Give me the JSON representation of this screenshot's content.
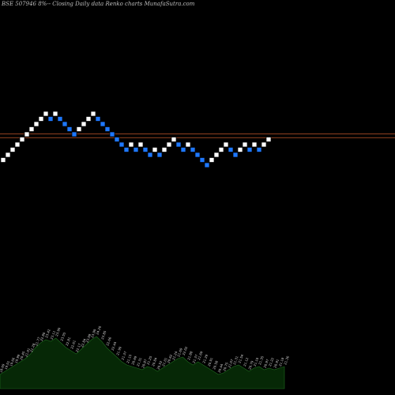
{
  "chart_data": {
    "type": "renko",
    "title": "BSE 507946 8%-- Closing Daily data Renko charts MunafaSutra.com",
    "colors": {
      "background": "#000000",
      "up_brick": "#ffffff",
      "up_brick_border": "#000000",
      "down_brick": "#1e78ff",
      "down_brick_border": "#000000",
      "reference_line": "#c0562a",
      "volume_area": "#062806",
      "volume_outline": "#1f6a1f"
    },
    "price_axis": {
      "min": 0,
      "max": 36
    },
    "reference_lines": [
      26.1,
      25.35
    ],
    "bricks": [
      {
        "dir": "up",
        "level": 21
      },
      {
        "dir": "up",
        "level": 22
      },
      {
        "dir": "up",
        "level": 23
      },
      {
        "dir": "up",
        "level": 24
      },
      {
        "dir": "up",
        "level": 25
      },
      {
        "dir": "up",
        "level": 26
      },
      {
        "dir": "up",
        "level": 27
      },
      {
        "dir": "up",
        "level": 28
      },
      {
        "dir": "up",
        "level": 29
      },
      {
        "dir": "up",
        "level": 30
      },
      {
        "dir": "down",
        "level": 29
      },
      {
        "dir": "up",
        "level": 30
      },
      {
        "dir": "down",
        "level": 29
      },
      {
        "dir": "down",
        "level": 28
      },
      {
        "dir": "down",
        "level": 27
      },
      {
        "dir": "down",
        "level": 26
      },
      {
        "dir": "up",
        "level": 27
      },
      {
        "dir": "up",
        "level": 28
      },
      {
        "dir": "up",
        "level": 29
      },
      {
        "dir": "up",
        "level": 30
      },
      {
        "dir": "down",
        "level": 29
      },
      {
        "dir": "down",
        "level": 28
      },
      {
        "dir": "down",
        "level": 27
      },
      {
        "dir": "down",
        "level": 26
      },
      {
        "dir": "down",
        "level": 25
      },
      {
        "dir": "down",
        "level": 24
      },
      {
        "dir": "down",
        "level": 23
      },
      {
        "dir": "up",
        "level": 24
      },
      {
        "dir": "down",
        "level": 23
      },
      {
        "dir": "up",
        "level": 24
      },
      {
        "dir": "down",
        "level": 23
      },
      {
        "dir": "down",
        "level": 22
      },
      {
        "dir": "up",
        "level": 23
      },
      {
        "dir": "down",
        "level": 22
      },
      {
        "dir": "up",
        "level": 23
      },
      {
        "dir": "up",
        "level": 24
      },
      {
        "dir": "up",
        "level": 25
      },
      {
        "dir": "down",
        "level": 24
      },
      {
        "dir": "down",
        "level": 23
      },
      {
        "dir": "up",
        "level": 24
      },
      {
        "dir": "down",
        "level": 23
      },
      {
        "dir": "down",
        "level": 22
      },
      {
        "dir": "down",
        "level": 21
      },
      {
        "dir": "down",
        "level": 20
      },
      {
        "dir": "up",
        "level": 21
      },
      {
        "dir": "up",
        "level": 22
      },
      {
        "dir": "up",
        "level": 23
      },
      {
        "dir": "up",
        "level": 24
      },
      {
        "dir": "down",
        "level": 23
      },
      {
        "dir": "down",
        "level": 22
      },
      {
        "dir": "up",
        "level": 23
      },
      {
        "dir": "up",
        "level": 24
      },
      {
        "dir": "down",
        "level": 23
      },
      {
        "dir": "up",
        "level": 24
      },
      {
        "dir": "down",
        "level": 23
      },
      {
        "dir": "up",
        "level": 24
      },
      {
        "dir": "up",
        "level": 25
      }
    ],
    "volume": [
      18,
      22,
      26,
      30,
      34,
      38,
      44,
      52,
      58,
      62,
      60,
      64,
      58,
      52,
      48,
      44,
      50,
      56,
      62,
      66,
      60,
      52,
      46,
      40,
      34,
      30,
      28,
      26,
      24,
      28,
      26,
      22,
      26,
      30,
      34,
      38,
      40,
      34,
      30,
      34,
      30,
      26,
      22,
      18,
      20,
      24,
      28,
      30,
      26,
      22,
      26,
      28,
      24,
      26,
      24,
      26,
      28
    ],
    "price_labels": [
      "18.69",
      "19.01",
      "19.66",
      "19.99",
      "20.45",
      "21.01",
      "21.28",
      "21.77",
      "22.80",
      "23.42",
      "23.11",
      "23.90",
      "23.55",
      "22.81",
      "22.61",
      "22.17",
      "22.84",
      "23.09",
      "23.99",
      "24.20",
      "23.85",
      "22.66",
      "22.44",
      "21.90",
      "21.37",
      "21.15",
      "20.69",
      "21.31",
      "20.87",
      "21.25",
      "20.84",
      "20.52",
      "21.01",
      "20.62",
      "21.24",
      "21.69",
      "22.02",
      "21.88",
      "21.37",
      "21.69",
      "21.29",
      "20.91",
      "20.58",
      "20.44",
      "20.75",
      "21.07",
      "21.31",
      "21.54",
      "21.12",
      "20.79",
      "21.10",
      "21.35",
      "20.97",
      "21.22",
      "20.91",
      "21.18",
      "21.36"
    ]
  }
}
